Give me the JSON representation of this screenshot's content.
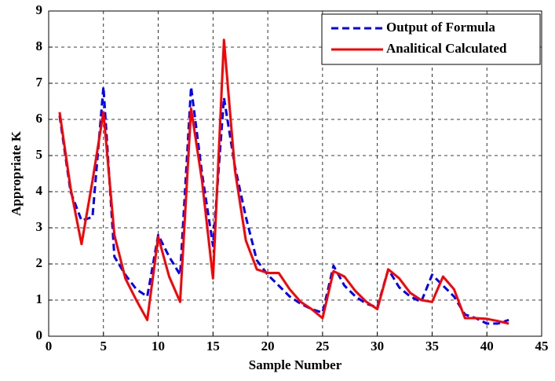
{
  "chart_data": {
    "type": "line",
    "xlabel": "Sample Number",
    "ylabel": "Appropriate K",
    "x": [
      1,
      2,
      3,
      4,
      5,
      6,
      7,
      8,
      9,
      10,
      11,
      12,
      13,
      14,
      15,
      16,
      17,
      18,
      19,
      20,
      21,
      22,
      23,
      24,
      25,
      26,
      27,
      28,
      29,
      30,
      31,
      32,
      33,
      34,
      35,
      36,
      37,
      38,
      39,
      40,
      41,
      42
    ],
    "series": [
      {
        "name": "Output of Formula",
        "color": "#0000ff",
        "dash": true,
        "values": [
          6.1,
          4.0,
          3.2,
          3.3,
          6.9,
          2.2,
          1.7,
          1.3,
          1.1,
          2.8,
          2.2,
          1.7,
          6.9,
          4.5,
          2.5,
          6.6,
          4.7,
          3.3,
          2.1,
          1.7,
          1.4,
          1.1,
          0.9,
          0.75,
          0.65,
          1.95,
          1.4,
          1.1,
          0.9,
          0.8,
          1.85,
          1.35,
          1.1,
          0.95,
          1.7,
          1.4,
          1.1,
          0.6,
          0.5,
          0.35,
          0.35,
          0.45
        ]
      },
      {
        "name": "Analitical Calculated",
        "color": "#ff0000",
        "dash": false,
        "values": [
          6.2,
          4.1,
          2.55,
          4.3,
          6.2,
          2.8,
          1.6,
          1.0,
          0.45,
          2.75,
          1.65,
          0.95,
          6.3,
          4.3,
          1.6,
          8.2,
          4.6,
          2.65,
          1.85,
          1.75,
          1.75,
          1.3,
          0.95,
          0.75,
          0.5,
          1.8,
          1.65,
          1.25,
          0.95,
          0.75,
          1.85,
          1.6,
          1.2,
          1.0,
          0.95,
          1.65,
          1.3,
          0.5,
          0.5,
          0.48,
          0.42,
          0.35
        ]
      }
    ],
    "xlim": [
      0,
      45
    ],
    "xticks": [
      0,
      5,
      10,
      15,
      20,
      25,
      30,
      35,
      40,
      45
    ],
    "ylim": [
      0,
      9
    ],
    "yticks": [
      0,
      1,
      2,
      3,
      4,
      5,
      6,
      7,
      8,
      9
    ],
    "grid": true,
    "legend": "upper right"
  }
}
